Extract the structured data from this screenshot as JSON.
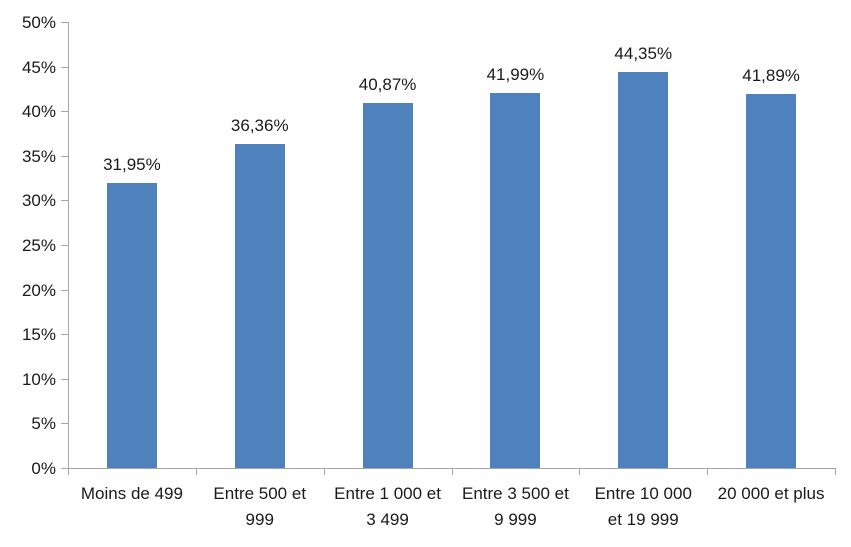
{
  "chart_data": {
    "type": "bar",
    "title": "",
    "xlabel": "",
    "ylabel": "",
    "categories": [
      "Moins de 499",
      "Entre 500 et 999",
      "Entre 1 000 et 3 499",
      "Entre 3 500 et 9 999",
      "Entre 10 000 et 19 999",
      "20 000 et plus"
    ],
    "category_lines": [
      [
        "Moins de 499"
      ],
      [
        "Entre 500 et",
        "999"
      ],
      [
        "Entre 1 000 et",
        "3 499"
      ],
      [
        "Entre 3 500 et",
        "9 999"
      ],
      [
        "Entre 10 000",
        "et 19 999"
      ],
      [
        "20 000 et plus"
      ]
    ],
    "values": [
      31.95,
      36.36,
      40.87,
      41.99,
      44.35,
      41.89
    ],
    "data_labels": [
      "31,95%",
      "36,36%",
      "40,87%",
      "41,99%",
      "44,35%",
      "41,89%"
    ],
    "y_tick_values": [
      0,
      5,
      10,
      15,
      20,
      25,
      30,
      35,
      40,
      45,
      50
    ],
    "y_tick_labels": [
      "0%",
      "5%",
      "10%",
      "15%",
      "20%",
      "25%",
      "30%",
      "35%",
      "40%",
      "45%",
      "50%"
    ],
    "ylim": [
      0,
      50
    ],
    "grid": false,
    "legend": null,
    "bar_color": "#4F81BD",
    "axis_color": "#A6A6A6",
    "text_color": "#1a1a1a"
  }
}
